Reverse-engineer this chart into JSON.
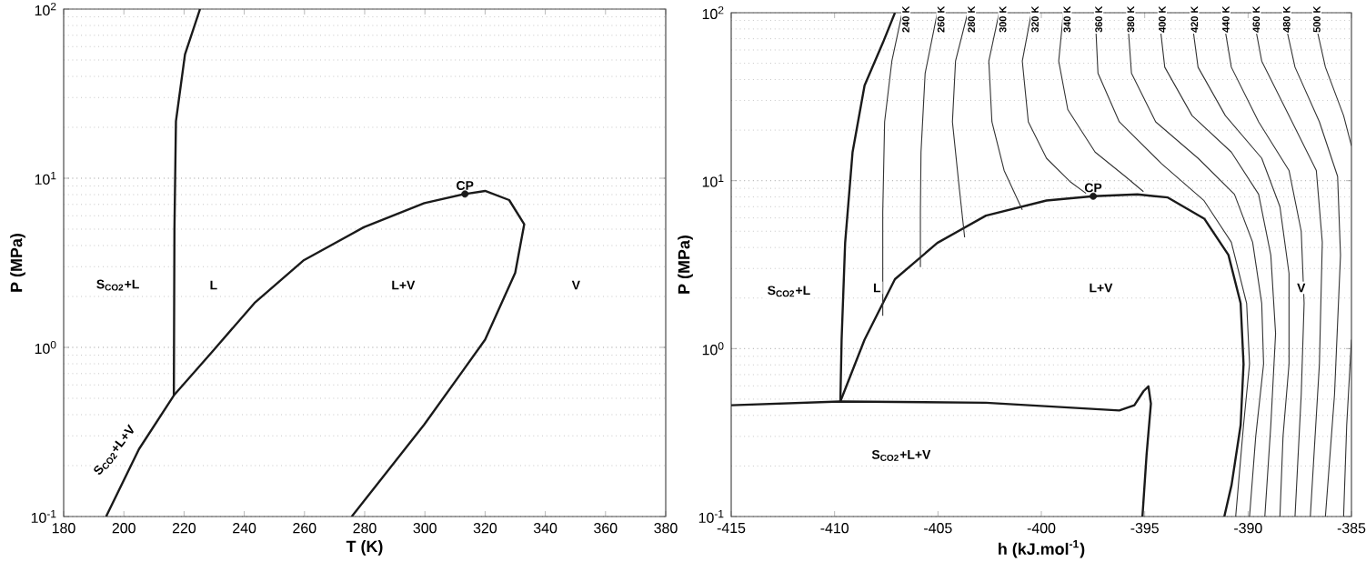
{
  "chart_data": [
    {
      "type": "line",
      "xlabel": "T (K)",
      "ylabel": "P (MPa)",
      "log": "y",
      "grid": "y",
      "marker": "none",
      "xlim": [
        180,
        380
      ],
      "xticks": [
        180,
        200,
        220,
        240,
        260,
        280,
        300,
        320,
        340,
        360,
        380
      ],
      "ylim": [
        0.1,
        100
      ],
      "yticks": [
        {
          "value": 0.1,
          "label": "10$^{-1}$"
        },
        {
          "value": 1,
          "label": "10$^{0}$"
        },
        {
          "value": 10,
          "label": "10$^{1}$"
        },
        {
          "value": 100,
          "label": "10$^{2}$"
        }
      ],
      "series": [
        {
          "color": "#1a1a1a",
          "x": [
            216.6,
            216.8,
            217.3,
            220.3,
            225.3
          ],
          "values": [
            0.52,
            5,
            21.7,
            53.9,
            100
          ]
        },
        {
          "color": "#1a1a1a",
          "x": [
            194.1,
            205,
            216.6,
            229.3,
            243.4,
            259.6,
            279.7,
            299.8,
            313.3,
            320,
            328,
            333,
            330,
            320,
            299.8,
            275.7
          ],
          "values": [
            0.1,
            0.25,
            0.52,
            0.94,
            1.83,
            3.26,
            5.13,
            7.13,
            8.07,
            8.41,
            7.43,
            5.35,
            2.76,
            1.11,
            0.35,
            0.1
          ]
        },
        {
          "type": "scatter",
          "marker": "circle",
          "color": "#1a1a1a",
          "x": [
            313.3
          ],
          "values": [
            8.07
          ]
        }
      ],
      "annotations": [
        {
          "text": "CP",
          "x": 313.3,
          "y": 8.07
        },
        "S$_{CO2}$+L",
        "L",
        "L+V",
        "S$_{CO2}$+L+V",
        "V"
      ]
    },
    {
      "type": "line",
      "xlabel": "h (kJ.mol$^{-1}$)",
      "ylabel": "P (MPa)",
      "log": "y",
      "grid": "y",
      "marker": "none",
      "xlim": [
        -415,
        -385
      ],
      "xticks": [
        -415,
        -410,
        -405,
        -400,
        -395,
        -390,
        -385
      ],
      "ylim": [
        0.1,
        100
      ],
      "yticks": [
        {
          "value": 0.1,
          "label": "10$^{-1}$"
        },
        {
          "value": 1,
          "label": "10$^{0}$"
        },
        {
          "value": 10,
          "label": "10$^{1}$"
        },
        {
          "value": 100,
          "label": "10$^{2}$"
        }
      ],
      "series": [
        {
          "color": "#1a1a1a",
          "x": [
            -409.72,
            -409.66,
            -409.49,
            -409.13,
            -408.55,
            -407.67,
            -407.08
          ],
          "values": [
            0.484,
            1.13,
            4.26,
            14.8,
            36.9,
            66,
            100
          ]
        },
        {
          "color": "#1a1a1a",
          "x": [
            -415,
            -409.72,
            -402.68,
            -396.23,
            -395.5,
            -395.06,
            -394.82,
            -394.7,
            -394.91,
            -395.11
          ],
          "values": [
            0.46,
            0.484,
            0.476,
            0.428,
            0.46,
            0.557,
            0.596,
            0.47,
            0.233,
            0.1
          ]
        },
        {
          "color": "#1a1a1a",
          "x": [
            -409.72,
            -408.55,
            -407.08,
            -405.03,
            -402.68,
            -399.75,
            -397.49,
            -395.35,
            -393.88,
            -392.12,
            -390.95,
            -390.36,
            -390.22,
            -390.36,
            -390.8,
            -391.15
          ],
          "values": [
            0.484,
            1.13,
            2.59,
            4.26,
            6.19,
            7.62,
            8.08,
            8.28,
            7.94,
            5.94,
            3.61,
            1.86,
            0.81,
            0.35,
            0.154,
            0.1
          ]
        },
        {
          "type": "scatter",
          "marker": "circle",
          "color": "#1a1a1a",
          "x": [
            -397.49
          ],
          "values": [
            8.08
          ]
        },
        {
          "type": "line",
          "name": "240 K",
          "color": "#333333",
          "x": [
            -406.73,
            -407.23,
            -407.58,
            -407.67,
            -407.67
          ],
          "values": [
            100,
            51.5,
            22.4,
            6.5,
            1.57
          ]
        },
        {
          "type": "line",
          "name": "260 K",
          "color": "#333333",
          "x": [
            -405.03,
            -405.62,
            -405.82,
            -405.85,
            -405.85
          ],
          "values": [
            100,
            43.6,
            14.8,
            6.5,
            3.06
          ]
        },
        {
          "type": "line",
          "name": "280 K",
          "color": "#333333",
          "x": [
            -403.56,
            -404.15,
            -404.3,
            -404.0,
            -403.71
          ],
          "values": [
            100,
            51.5,
            22.4,
            9.8,
            4.6
          ]
        },
        {
          "type": "line",
          "name": "300 K",
          "color": "#333333",
          "x": [
            -402.04,
            -402.54,
            -402.39,
            -401.8,
            -400.92
          ],
          "values": [
            100,
            51.5,
            22.4,
            11.5,
            6.7
          ]
        },
        {
          "type": "line",
          "name": "320 K",
          "color": "#333333",
          "x": [
            -400.48,
            -400.92,
            -400.63,
            -399.75,
            -398.58,
            -397.84
          ],
          "values": [
            100,
            51.5,
            22.4,
            13.6,
            9.8,
            8.4
          ]
        },
        {
          "type": "line",
          "name": "340 K",
          "color": "#333333",
          "x": [
            -398.93,
            -399.16,
            -398.72,
            -397.4,
            -395.94,
            -395.06
          ],
          "values": [
            100,
            51.5,
            26.5,
            14.8,
            10.6,
            8.6
          ]
        },
        {
          "type": "line",
          "name": "360 K",
          "color": "#333333",
          "x": [
            -397.4,
            -397.26,
            -396.23,
            -394.18,
            -392.13,
            -390.81,
            -390.07,
            -389.93,
            -390.22,
            -390.6
          ],
          "values": [
            100,
            43.6,
            22.4,
            12.6,
            7.6,
            4.3,
            1.86,
            0.81,
            0.35,
            0.1
          ]
        },
        {
          "type": "line",
          "name": "380 K",
          "color": "#333333",
          "x": [
            -395.85,
            -395.64,
            -394.47,
            -392.42,
            -390.66,
            -389.78,
            -389.34,
            -389.25,
            -389.63,
            -389.93
          ],
          "values": [
            100,
            43.6,
            22.4,
            13.6,
            8.3,
            4.3,
            1.86,
            0.81,
            0.3,
            0.1
          ]
        },
        {
          "type": "line",
          "name": "400 K",
          "color": "#333333",
          "x": [
            -394.33,
            -394.03,
            -392.71,
            -390.81,
            -389.49,
            -388.9,
            -388.67,
            -388.9,
            -389.19
          ],
          "values": [
            100,
            47.4,
            24.4,
            14.8,
            8.3,
            3.6,
            1.23,
            0.35,
            0.1
          ]
        },
        {
          "type": "line",
          "name": "420 K",
          "color": "#333333",
          "x": [
            -392.77,
            -392.42,
            -391.1,
            -389.34,
            -388.46,
            -388.02,
            -388.02,
            -388.31,
            -388.46
          ],
          "values": [
            100,
            47.4,
            24.4,
            13.6,
            7.0,
            2.8,
            0.81,
            0.3,
            0.1
          ]
        },
        {
          "type": "line",
          "name": "440 K",
          "color": "#333333",
          "x": [
            -391.25,
            -390.81,
            -389.49,
            -388.02,
            -387.43,
            -387.29,
            -387.43,
            -387.73
          ],
          "values": [
            100,
            47.4,
            22.4,
            11.5,
            5.0,
            1.86,
            0.53,
            0.1
          ]
        },
        {
          "type": "line",
          "name": "460 K",
          "color": "#333333",
          "x": [
            -389.78,
            -389.34,
            -388.02,
            -386.7,
            -386.41,
            -386.55,
            -386.99
          ],
          "values": [
            100,
            51.5,
            24.4,
            11.5,
            4.3,
            0.81,
            0.1
          ]
        },
        {
          "type": "line",
          "name": "480 K",
          "color": "#333333",
          "x": [
            -388.31,
            -387.73,
            -386.55,
            -385.67,
            -385.53,
            -385.82,
            -386.26
          ],
          "values": [
            100,
            47.4,
            22.4,
            10.6,
            3.6,
            0.53,
            0.1
          ]
        },
        {
          "type": "line",
          "name": "500 K",
          "color": "#333333",
          "x": [
            -386.85,
            -386.26,
            -385.38,
            -385,
            null,
            -385,
            -385.23,
            -385.38
          ],
          "values": [
            100,
            47.4,
            24.4,
            16.1,
            null,
            1.13,
            0.35,
            0.1
          ]
        }
      ],
      "annotations": [
        "S$_{CO2}$+L",
        "L",
        {
          "text": "CP",
          "x": -397.49,
          "y": 8.08
        },
        "L+V",
        "V",
        "S$_{CO2}$+L+V"
      ]
    }
  ]
}
